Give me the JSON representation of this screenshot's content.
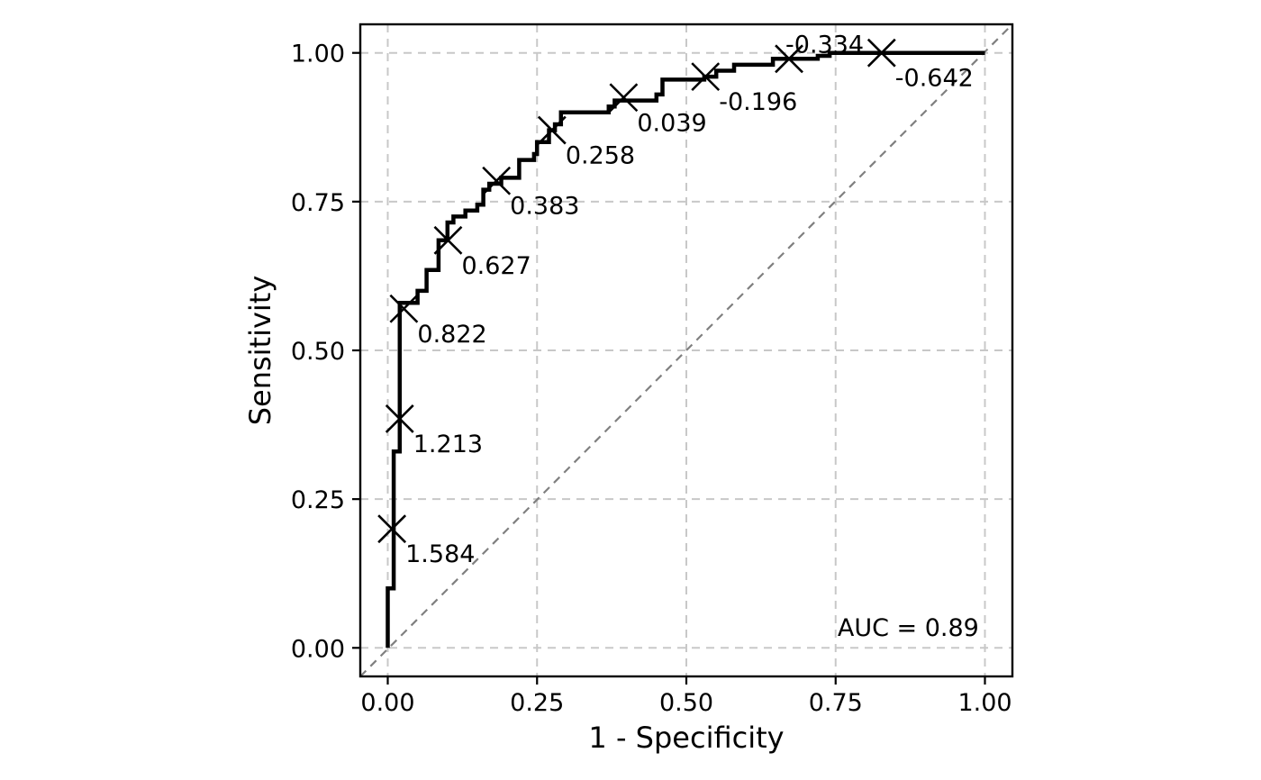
{
  "chart_data": {
    "type": "line",
    "xlabel": "1 - Specificity",
    "ylabel": "Sensitivity",
    "xlim": [
      -0.046,
      1.046
    ],
    "ylim": [
      -0.048,
      1.048
    ],
    "x_ticks": [
      "0.00",
      "0.25",
      "0.50",
      "0.75",
      "1.00"
    ],
    "y_ticks": [
      "0.00",
      "0.25",
      "0.50",
      "0.75",
      "1.00"
    ],
    "grid": true,
    "grid_style": "dashed",
    "reference_line": {
      "x": [
        -0.046,
        1.046
      ],
      "y": [
        -0.048,
        1.048
      ],
      "color": "#808080"
    },
    "roc_curve": {
      "color": "#000000",
      "points": [
        [
          0.0,
          0.0
        ],
        [
          0.0,
          0.1
        ],
        [
          0.01,
          0.1
        ],
        [
          0.01,
          0.33
        ],
        [
          0.02,
          0.33
        ],
        [
          0.02,
          0.58
        ],
        [
          0.05,
          0.58
        ],
        [
          0.05,
          0.6
        ],
        [
          0.065,
          0.6
        ],
        [
          0.065,
          0.635
        ],
        [
          0.085,
          0.635
        ],
        [
          0.085,
          0.685
        ],
        [
          0.1,
          0.685
        ],
        [
          0.1,
          0.715
        ],
        [
          0.11,
          0.715
        ],
        [
          0.11,
          0.725
        ],
        [
          0.13,
          0.725
        ],
        [
          0.13,
          0.735
        ],
        [
          0.15,
          0.735
        ],
        [
          0.15,
          0.745
        ],
        [
          0.16,
          0.745
        ],
        [
          0.16,
          0.77
        ],
        [
          0.17,
          0.77
        ],
        [
          0.17,
          0.78
        ],
        [
          0.19,
          0.78
        ],
        [
          0.19,
          0.79
        ],
        [
          0.22,
          0.79
        ],
        [
          0.22,
          0.82
        ],
        [
          0.245,
          0.82
        ],
        [
          0.245,
          0.83
        ],
        [
          0.25,
          0.83
        ],
        [
          0.25,
          0.85
        ],
        [
          0.27,
          0.85
        ],
        [
          0.27,
          0.87
        ],
        [
          0.28,
          0.87
        ],
        [
          0.28,
          0.88
        ],
        [
          0.29,
          0.88
        ],
        [
          0.29,
          0.9
        ],
        [
          0.37,
          0.9
        ],
        [
          0.37,
          0.91
        ],
        [
          0.38,
          0.91
        ],
        [
          0.38,
          0.92
        ],
        [
          0.45,
          0.92
        ],
        [
          0.45,
          0.93
        ],
        [
          0.46,
          0.93
        ],
        [
          0.46,
          0.955
        ],
        [
          0.53,
          0.955
        ],
        [
          0.53,
          0.96
        ],
        [
          0.55,
          0.96
        ],
        [
          0.55,
          0.97
        ],
        [
          0.58,
          0.97
        ],
        [
          0.58,
          0.98
        ],
        [
          0.645,
          0.98
        ],
        [
          0.645,
          0.99
        ],
        [
          0.72,
          0.99
        ],
        [
          0.72,
          0.995
        ],
        [
          0.74,
          0.995
        ],
        [
          0.74,
          1.0
        ],
        [
          1.0,
          1.0
        ]
      ]
    },
    "cutoffs": [
      {
        "x": 0.007,
        "y": 0.2,
        "label": "1.584"
      },
      {
        "x": 0.02,
        "y": 0.385,
        "label": "1.213"
      },
      {
        "x": 0.027,
        "y": 0.57,
        "label": "0.822"
      },
      {
        "x": 0.101,
        "y": 0.685,
        "label": "0.627"
      },
      {
        "x": 0.182,
        "y": 0.785,
        "label": "0.383"
      },
      {
        "x": 0.275,
        "y": 0.87,
        "label": "0.258"
      },
      {
        "x": 0.395,
        "y": 0.925,
        "label": "0.039"
      },
      {
        "x": 0.532,
        "y": 0.96,
        "label": "-0.196"
      },
      {
        "x": 0.672,
        "y": 0.99,
        "label": "-0.334"
      },
      {
        "x": 0.827,
        "y": 1.0,
        "label": "-0.642"
      }
    ],
    "annotations": [
      {
        "text": "AUC = 0.89",
        "x": 0.99,
        "y": 0.02
      }
    ]
  }
}
